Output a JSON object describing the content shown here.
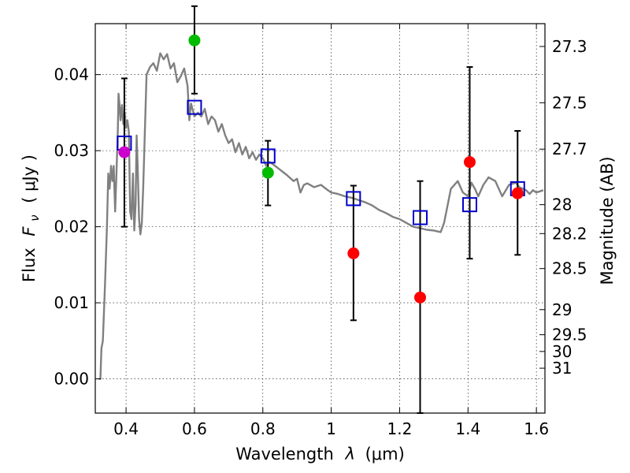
{
  "chart_data": {
    "type": "scatter",
    "xlabel_prefix": "Wavelength",
    "xlabel_symbol": "λ",
    "xlabel_unit": "(μm)",
    "ylabel_prefix": "Flux",
    "ylabel_symbol": "F",
    "ylabel_subscript": "ν",
    "ylabel_unit": "( μJy )",
    "y2label": "Magnitude (AB)",
    "xlim": [
      0.31,
      1.625
    ],
    "ylim": [
      -0.0045,
      0.0467
    ],
    "grid": true,
    "x_ticks": [
      0.4,
      0.6,
      0.8,
      1.0,
      1.2,
      1.4,
      1.6
    ],
    "x_tick_labels": [
      "0.4",
      "0.6",
      "0.8",
      "1",
      "1.2",
      "1.4",
      "1.6"
    ],
    "y_ticks": [
      0.0,
      0.01,
      0.02,
      0.03,
      0.04
    ],
    "y_tick_labels": [
      "0.00",
      "0.01",
      "0.02",
      "0.03",
      "0.04"
    ],
    "magnitude_ticks": [
      {
        "label": "27.3",
        "flux": 0.0437
      },
      {
        "label": "27.5",
        "flux": 0.0363
      },
      {
        "label": "27.7",
        "flux": 0.0302
      },
      {
        "label": "28",
        "flux": 0.0229
      },
      {
        "label": "28.2",
        "flux": 0.0191
      },
      {
        "label": "28.5",
        "flux": 0.0145
      },
      {
        "label": "29",
        "flux": 0.0091
      },
      {
        "label": "29.5",
        "flux": 0.0058
      },
      {
        "label": "30",
        "flux": 0.0036
      },
      {
        "label": "31",
        "flux": 0.0014
      }
    ],
    "model_sed": {
      "name": "model spectrum",
      "color": "#808080",
      "points": [
        [
          0.32,
          0.0
        ],
        [
          0.325,
          0.0
        ],
        [
          0.328,
          0.004
        ],
        [
          0.332,
          0.005
        ],
        [
          0.338,
          0.012
        ],
        [
          0.344,
          0.02
        ],
        [
          0.348,
          0.027
        ],
        [
          0.352,
          0.025
        ],
        [
          0.356,
          0.028
        ],
        [
          0.36,
          0.026
        ],
        [
          0.364,
          0.028
        ],
        [
          0.368,
          0.022
        ],
        [
          0.372,
          0.027
        ],
        [
          0.376,
          0.033
        ],
        [
          0.378,
          0.0375
        ],
        [
          0.381,
          0.036
        ],
        [
          0.384,
          0.034
        ],
        [
          0.388,
          0.036
        ],
        [
          0.392,
          0.0335
        ],
        [
          0.396,
          0.035
        ],
        [
          0.4,
          0.033
        ],
        [
          0.404,
          0.034
        ],
        [
          0.408,
          0.0325
        ],
        [
          0.412,
          0.022
        ],
        [
          0.416,
          0.021
        ],
        [
          0.42,
          0.027
        ],
        [
          0.424,
          0.0195
        ],
        [
          0.428,
          0.023
        ],
        [
          0.431,
          0.032
        ],
        [
          0.434,
          0.028
        ],
        [
          0.438,
          0.021
        ],
        [
          0.442,
          0.019
        ],
        [
          0.446,
          0.0205
        ],
        [
          0.45,
          0.025
        ],
        [
          0.46,
          0.04
        ],
        [
          0.47,
          0.041
        ],
        [
          0.48,
          0.0415
        ],
        [
          0.49,
          0.0405
        ],
        [
          0.5,
          0.0428
        ],
        [
          0.51,
          0.042
        ],
        [
          0.52,
          0.0427
        ],
        [
          0.53,
          0.0408
        ],
        [
          0.54,
          0.0415
        ],
        [
          0.55,
          0.039
        ],
        [
          0.56,
          0.0398
        ],
        [
          0.57,
          0.0408
        ],
        [
          0.58,
          0.0385
        ],
        [
          0.585,
          0.034
        ],
        [
          0.59,
          0.0362
        ],
        [
          0.6,
          0.0345
        ],
        [
          0.61,
          0.035
        ],
        [
          0.62,
          0.0345
        ],
        [
          0.63,
          0.0355
        ],
        [
          0.64,
          0.0335
        ],
        [
          0.65,
          0.0345
        ],
        [
          0.66,
          0.034
        ],
        [
          0.67,
          0.0325
        ],
        [
          0.68,
          0.0335
        ],
        [
          0.69,
          0.032
        ],
        [
          0.7,
          0.031
        ],
        [
          0.71,
          0.0315
        ],
        [
          0.72,
          0.0298
        ],
        [
          0.73,
          0.031
        ],
        [
          0.74,
          0.0295
        ],
        [
          0.75,
          0.0305
        ],
        [
          0.76,
          0.029
        ],
        [
          0.77,
          0.0298
        ],
        [
          0.78,
          0.0288
        ],
        [
          0.79,
          0.0295
        ],
        [
          0.8,
          0.029
        ],
        [
          0.81,
          0.028
        ],
        [
          0.82,
          0.0285
        ],
        [
          0.83,
          0.0282
        ],
        [
          0.85,
          0.0275
        ],
        [
          0.87,
          0.0268
        ],
        [
          0.89,
          0.026
        ],
        [
          0.9,
          0.0263
        ],
        [
          0.91,
          0.0245
        ],
        [
          0.92,
          0.0255
        ],
        [
          0.93,
          0.0257
        ],
        [
          0.95,
          0.0252
        ],
        [
          0.97,
          0.0255
        ],
        [
          0.99,
          0.0248
        ],
        [
          1.0,
          0.0245
        ],
        [
          1.02,
          0.0243
        ],
        [
          1.04,
          0.024
        ],
        [
          1.06,
          0.0238
        ],
        [
          1.08,
          0.0235
        ],
        [
          1.1,
          0.0232
        ],
        [
          1.12,
          0.0228
        ],
        [
          1.14,
          0.0222
        ],
        [
          1.16,
          0.0218
        ],
        [
          1.18,
          0.0213
        ],
        [
          1.2,
          0.021
        ],
        [
          1.22,
          0.0205
        ],
        [
          1.24,
          0.02
        ],
        [
          1.26,
          0.0198
        ],
        [
          1.28,
          0.0196
        ],
        [
          1.3,
          0.0195
        ],
        [
          1.32,
          0.0193
        ],
        [
          1.33,
          0.0205
        ],
        [
          1.35,
          0.025
        ],
        [
          1.37,
          0.026
        ],
        [
          1.385,
          0.0245
        ],
        [
          1.4,
          0.024
        ],
        [
          1.41,
          0.0258
        ],
        [
          1.42,
          0.025
        ],
        [
          1.43,
          0.024
        ],
        [
          1.445,
          0.0255
        ],
        [
          1.46,
          0.0265
        ],
        [
          1.48,
          0.026
        ],
        [
          1.5,
          0.024
        ],
        [
          1.52,
          0.0255
        ],
        [
          1.54,
          0.0258
        ],
        [
          1.55,
          0.0252
        ],
        [
          1.57,
          0.0248
        ],
        [
          1.58,
          0.0243
        ],
        [
          1.59,
          0.0248
        ],
        [
          1.6,
          0.0245
        ],
        [
          1.62,
          0.0248
        ]
      ]
    },
    "model_photometry": {
      "name": "model fluxes",
      "marker": "open-square",
      "color": "#0000cc",
      "x": [
        0.395,
        0.6,
        0.815,
        1.065,
        1.26,
        1.405,
        1.545
      ],
      "y": [
        0.031,
        0.0357,
        0.0293,
        0.0237,
        0.0212,
        0.0229,
        0.025
      ]
    },
    "observed": [
      {
        "name": "observed (magenta)",
        "color": "#cc00cc",
        "x": [
          0.395
        ],
        "y": [
          0.0298
        ],
        "yerr_low": [
          0.0098
        ],
        "yerr_high": [
          0.0097
        ]
      },
      {
        "name": "observed (green)",
        "color": "#00bb00",
        "x": [
          0.6,
          0.815
        ],
        "y": [
          0.0445,
          0.0271
        ],
        "yerr_low": [
          0.007,
          0.0043
        ],
        "yerr_high": [
          0.0045,
          0.0042
        ]
      },
      {
        "name": "observed (red)",
        "color": "#ff0000",
        "x": [
          1.065,
          1.26,
          1.405,
          1.545
        ],
        "y": [
          0.0165,
          0.0107,
          0.0285,
          0.0244
        ],
        "yerr_low": [
          0.0088,
          0.0152,
          0.0127,
          0.0081
        ],
        "yerr_high": [
          0.0089,
          0.0153,
          0.0125,
          0.0082
        ]
      }
    ]
  }
}
